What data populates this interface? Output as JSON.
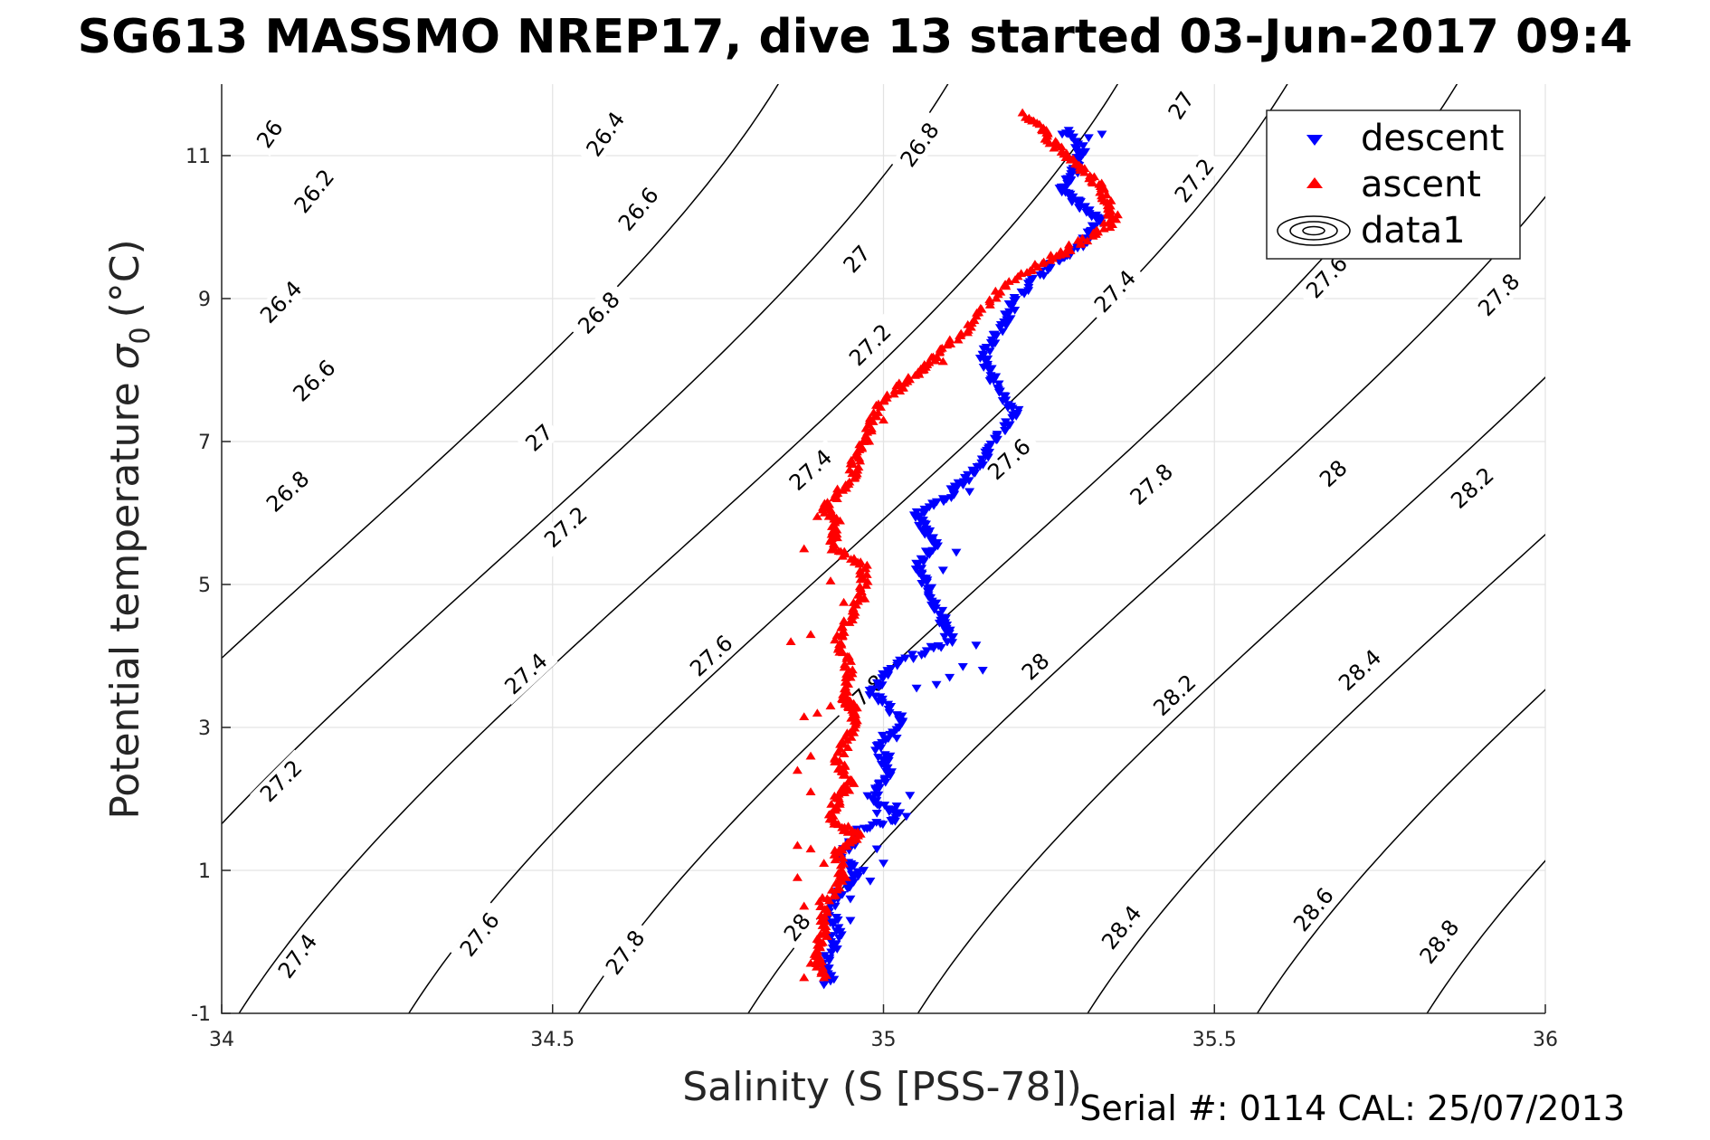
{
  "chart_data": {
    "type": "scatter",
    "title": "SG613 MASSMO NREP17, dive 13 started 03-Jun-2017 09:4",
    "xlabel": "Salinity (S [PSS-78])",
    "ylabel": "Potential temperature",
    "ylabel_sigma": "σ",
    "ylabel_sub": "0",
    "ylabel_unit": "(°C)",
    "xlim": [
      34,
      36
    ],
    "ylim": [
      -1,
      12
    ],
    "xticks": [
      34,
      34.5,
      35,
      35.5,
      36
    ],
    "xtick_labels": [
      "34",
      "34.5",
      "35",
      "35.5",
      "36"
    ],
    "yticks": [
      -1,
      1,
      3,
      5,
      7,
      9,
      11
    ],
    "ytick_labels": [
      "-1",
      "1",
      "3",
      "5",
      "7",
      "9",
      "11"
    ],
    "grid": true,
    "legend_position": "top-right",
    "legend": [
      {
        "name": "descent",
        "marker": "triangle-down",
        "color": "#0000ff"
      },
      {
        "name": "ascent",
        "marker": "triangle-up",
        "color": "#ff0000"
      },
      {
        "name": "data1",
        "marker": "contour"
      }
    ],
    "footer": "Serial #: 0114  CAL: 25/07/2013",
    "contours": {
      "levels": [
        26,
        26.2,
        26.4,
        26.6,
        26.8,
        27,
        27.2,
        27.4,
        27.6,
        27.8,
        28,
        28.2,
        28.4,
        28.6,
        28.8
      ],
      "line_color": "#000000",
      "labels": [
        {
          "text": "26",
          "s": 34.073,
          "t": 11.3
        },
        {
          "text": "26.2",
          "s": 34.14,
          "t": 10.5
        },
        {
          "text": "26.4",
          "s": 34.58,
          "t": 11.3
        },
        {
          "text": "26.6",
          "s": 34.63,
          "t": 10.25
        },
        {
          "text": "26.4",
          "s": 34.09,
          "t": 8.95
        },
        {
          "text": "26.8",
          "s": 35.055,
          "t": 11.15
        },
        {
          "text": "26.8",
          "s": 34.57,
          "t": 8.8
        },
        {
          "text": "26.6",
          "s": 34.14,
          "t": 7.85
        },
        {
          "text": "27",
          "s": 34.96,
          "t": 9.55
        },
        {
          "text": "27",
          "s": 35.45,
          "t": 11.7
        },
        {
          "text": "27.2",
          "s": 35.47,
          "t": 10.65
        },
        {
          "text": "27.2",
          "s": 34.98,
          "t": 8.35
        },
        {
          "text": "27",
          "s": 34.48,
          "t": 7.05
        },
        {
          "text": "26.8",
          "s": 34.1,
          "t": 6.3
        },
        {
          "text": "27.4",
          "s": 35.35,
          "t": 9.1
        },
        {
          "text": "27.6",
          "s": 35.67,
          "t": 9.3
        },
        {
          "text": "27.8",
          "s": 35.93,
          "t": 9.05
        },
        {
          "text": "27.4",
          "s": 34.89,
          "t": 6.6
        },
        {
          "text": "27.6",
          "s": 35.19,
          "t": 6.75
        },
        {
          "text": "27.2",
          "s": 34.52,
          "t": 5.8
        },
        {
          "text": "27.8",
          "s": 35.405,
          "t": 6.4
        },
        {
          "text": "28",
          "s": 35.68,
          "t": 6.55
        },
        {
          "text": "28.2",
          "s": 35.89,
          "t": 6.35
        },
        {
          "text": "27.4",
          "s": 34.46,
          "t": 3.75
        },
        {
          "text": "27.6",
          "s": 34.74,
          "t": 4.0
        },
        {
          "text": "27.8",
          "s": 34.97,
          "t": 3.45
        },
        {
          "text": "28",
          "s": 35.23,
          "t": 3.85
        },
        {
          "text": "28.2",
          "s": 35.44,
          "t": 3.45
        },
        {
          "text": "28.4",
          "s": 35.72,
          "t": 3.8
        },
        {
          "text": "27.2",
          "s": 34.09,
          "t": 2.25
        },
        {
          "text": "27.4",
          "s": 34.115,
          "t": -0.2
        },
        {
          "text": "27.6",
          "s": 34.39,
          "t": 0.1
        },
        {
          "text": "27.8",
          "s": 34.61,
          "t": -0.15
        },
        {
          "text": "28",
          "s": 34.87,
          "t": 0.2
        },
        {
          "text": "28.4",
          "s": 35.36,
          "t": 0.2
        },
        {
          "text": "28.6",
          "s": 35.65,
          "t": 0.45
        },
        {
          "text": "28.8",
          "s": 35.84,
          "t": 0.0
        }
      ]
    },
    "series": [
      {
        "name": "descent",
        "color": "#0000ff",
        "marker": "triangle-down",
        "anchors": [
          [
            35.28,
            11.35
          ],
          [
            35.3,
            11.05
          ],
          [
            35.29,
            10.8
          ],
          [
            35.27,
            10.55
          ],
          [
            35.3,
            10.3
          ],
          [
            35.33,
            10.1
          ],
          [
            35.3,
            9.75
          ],
          [
            35.25,
            9.45
          ],
          [
            35.2,
            9.0
          ],
          [
            35.18,
            8.6
          ],
          [
            35.15,
            8.2
          ],
          [
            35.17,
            7.8
          ],
          [
            35.2,
            7.4
          ],
          [
            35.17,
            7.0
          ],
          [
            35.14,
            6.6
          ],
          [
            35.1,
            6.25
          ],
          [
            35.05,
            5.95
          ],
          [
            35.08,
            5.6
          ],
          [
            35.05,
            5.25
          ],
          [
            35.07,
            4.9
          ],
          [
            35.09,
            4.5
          ],
          [
            35.1,
            4.2
          ],
          [
            35.02,
            3.9
          ],
          [
            34.98,
            3.5
          ],
          [
            35.03,
            3.1
          ],
          [
            34.99,
            2.75
          ],
          [
            35.01,
            2.35
          ],
          [
            34.98,
            2.0
          ],
          [
            35.03,
            1.75
          ],
          [
            34.96,
            1.55
          ],
          [
            34.94,
            1.2
          ],
          [
            34.96,
            0.9
          ],
          [
            34.92,
            0.55
          ],
          [
            34.93,
            0.1
          ],
          [
            34.91,
            -0.3
          ],
          [
            34.92,
            -0.55
          ]
        ],
        "extras": [
          [
            35.33,
            11.3
          ],
          [
            35.31,
            11.25
          ],
          [
            35.27,
            11.3
          ],
          [
            35.14,
            4.15
          ],
          [
            35.15,
            3.8
          ],
          [
            35.12,
            3.85
          ],
          [
            35.1,
            3.7
          ],
          [
            35.05,
            3.55
          ],
          [
            35.08,
            3.6
          ],
          [
            35.04,
            2.05
          ],
          [
            35.02,
            1.9
          ],
          [
            34.99,
            1.8
          ],
          [
            35.01,
            2.6
          ],
          [
            35.02,
            2.85
          ],
          [
            35.0,
            1.1
          ],
          [
            34.98,
            0.85
          ],
          [
            34.95,
            0.3
          ],
          [
            34.93,
            -0.1
          ],
          [
            34.95,
            0.6
          ],
          [
            34.97,
            1.0
          ],
          [
            34.99,
            1.3
          ],
          [
            34.91,
            -0.6
          ],
          [
            35.09,
            5.2
          ],
          [
            35.07,
            5.75
          ],
          [
            35.11,
            5.45
          ],
          [
            35.16,
            6.85
          ],
          [
            35.13,
            6.3
          ],
          [
            35.06,
            5.9
          ]
        ]
      },
      {
        "name": "ascent",
        "color": "#ff0000",
        "marker": "triangle-up",
        "anchors": [
          [
            35.22,
            11.55
          ],
          [
            35.25,
            11.25
          ],
          [
            35.28,
            10.95
          ],
          [
            35.32,
            10.65
          ],
          [
            35.34,
            10.35
          ],
          [
            35.35,
            10.1
          ],
          [
            35.3,
            9.8
          ],
          [
            35.24,
            9.5
          ],
          [
            35.17,
            9.1
          ],
          [
            35.13,
            8.6
          ],
          [
            35.08,
            8.2
          ],
          [
            35.05,
            7.95
          ],
          [
            35.0,
            7.6
          ],
          [
            34.98,
            7.2
          ],
          [
            34.96,
            6.8
          ],
          [
            34.95,
            6.45
          ],
          [
            34.91,
            6.1
          ],
          [
            34.93,
            5.85
          ],
          [
            34.92,
            5.55
          ],
          [
            34.97,
            5.25
          ],
          [
            34.97,
            4.9
          ],
          [
            34.95,
            4.55
          ],
          [
            34.93,
            4.2
          ],
          [
            34.95,
            3.8
          ],
          [
            34.94,
            3.4
          ],
          [
            34.96,
            3.25
          ],
          [
            34.95,
            2.9
          ],
          [
            34.93,
            2.55
          ],
          [
            34.95,
            2.25
          ],
          [
            34.93,
            2.0
          ],
          [
            34.92,
            1.7
          ],
          [
            34.96,
            1.5
          ],
          [
            34.93,
            1.25
          ],
          [
            34.94,
            0.9
          ],
          [
            34.91,
            0.55
          ],
          [
            34.91,
            0.15
          ],
          [
            34.9,
            -0.2
          ],
          [
            34.91,
            -0.5
          ]
        ],
        "extras": [
          [
            35.21,
            11.6
          ],
          [
            35.24,
            11.35
          ],
          [
            35.26,
            11.2
          ],
          [
            35.09,
            8.12
          ],
          [
            35.06,
            8.0
          ],
          [
            35.03,
            7.75
          ],
          [
            35.0,
            7.3
          ],
          [
            34.97,
            7.0
          ],
          [
            34.96,
            6.55
          ],
          [
            34.93,
            6.2
          ],
          [
            34.9,
            5.95
          ],
          [
            34.88,
            5.5
          ],
          [
            34.92,
            5.05
          ],
          [
            34.94,
            4.75
          ],
          [
            34.89,
            4.3
          ],
          [
            34.86,
            4.2
          ],
          [
            34.88,
            3.15
          ],
          [
            34.9,
            3.2
          ],
          [
            34.87,
            2.4
          ],
          [
            34.89,
            2.1
          ],
          [
            34.87,
            1.35
          ],
          [
            34.89,
            1.3
          ],
          [
            34.87,
            0.9
          ],
          [
            34.88,
            0.5
          ],
          [
            34.88,
            -0.5
          ],
          [
            34.89,
            -0.3
          ],
          [
            34.95,
            3.7
          ],
          [
            34.92,
            3.3
          ],
          [
            34.89,
            2.6
          ],
          [
            34.91,
            1.1
          ]
        ]
      }
    ]
  }
}
